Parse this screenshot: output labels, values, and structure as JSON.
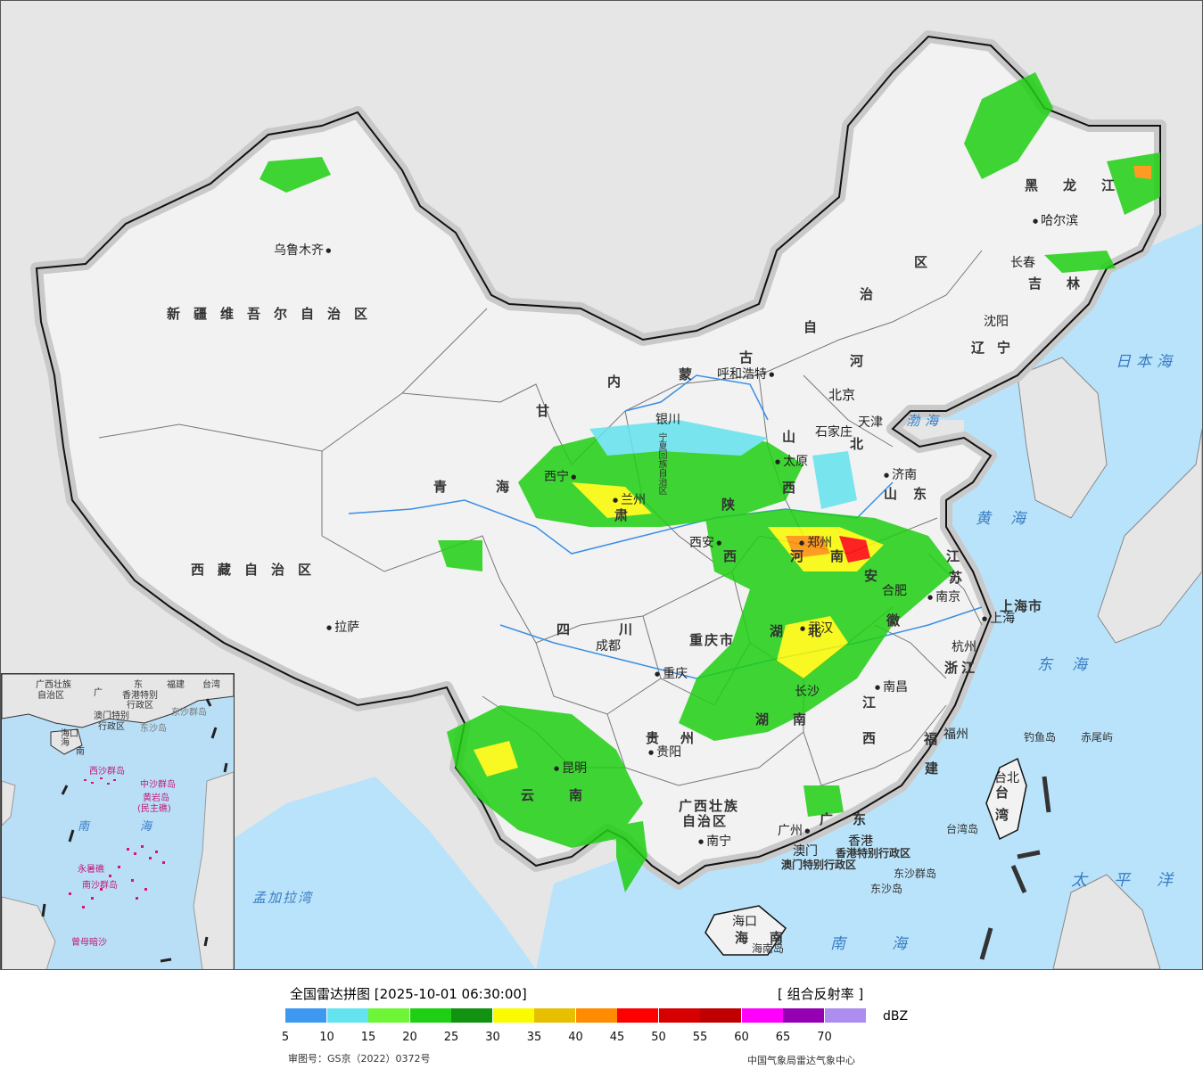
{
  "map": {
    "provinces": [
      "新疆维吾尔自治区",
      "西藏自治区",
      "青海",
      "甘肃",
      "内蒙古自治区",
      "黑龙江",
      "吉林",
      "辽宁",
      "河北",
      "山西",
      "陕西",
      "河南",
      "山东",
      "江苏",
      "安徽",
      "湖北",
      "四川",
      "重庆市",
      "贵州",
      "云南",
      "湖南",
      "江西",
      "浙江",
      "福建",
      "广东",
      "广西壮族自治区",
      "海南",
      "台湾"
    ],
    "province_labels": {
      "xinjiang": "新疆维吾尔自治区",
      "xizang": "西藏自治区",
      "qinghai": "青海",
      "gansu": "甘",
      "gansu2": "肃",
      "neimeng_nei": "内",
      "neimeng_meng": "蒙",
      "neimeng_gu": "古",
      "neimeng_zi": "自",
      "neimeng_zhi": "治",
      "neimeng_qu": "区",
      "heilongjiang": "黑龙江",
      "jilin": "吉林",
      "liaoning": "辽宁",
      "hebei1": "河",
      "hebei2": "北",
      "shanxi1": "山",
      "shanxi2": "西",
      "shaanxi1": "陕",
      "shaanxi2": "西",
      "henan": "河南",
      "shandong": "山东",
      "jiangsu1": "江",
      "jiangsu2": "苏",
      "anhui1": "安",
      "anhui2": "徽",
      "hubei1": "湖",
      "hubei2": "北",
      "sichuan": "四川",
      "chongqing": "重庆市",
      "guizhou1": "贵",
      "guizhou2": "州",
      "yunnan1": "云",
      "yunnan2": "南",
      "hunan1": "湖",
      "hunan2": "南",
      "jiangxi1": "江",
      "jiangxi2": "西",
      "zhejiang": "浙江",
      "fujian1": "福",
      "fujian2": "建",
      "guangdong": "广东",
      "guangxi1": "广西壮族",
      "guangxi2": "自治区",
      "hainan1": "海",
      "hainan2": "南",
      "taiwan1": "台",
      "taiwan2": "湾",
      "ningxia": "宁夏回族自治区",
      "shanghai": "上海市",
      "tianjin": "天津",
      "hk_sar": "香港特别行政区",
      "macao_sar": "澳门特别行政区"
    },
    "cities": {
      "urumqi": "乌鲁木齐",
      "lhasa": "拉萨",
      "xining": "西宁",
      "lanzhou": "兰州",
      "yinchuan": "银川",
      "hohhot": "呼和浩特",
      "beijing": "北京",
      "tianjin": "天津",
      "shijiazhuang": "石家庄",
      "taiyuan": "太原",
      "jinan": "济南",
      "xian": "西安",
      "zhengzhou": "郑州",
      "hefei": "合肥",
      "nanjing": "南京",
      "shanghai": "上海",
      "hangzhou": "杭州",
      "wuhan": "武汉",
      "chengdu": "成都",
      "chongqing": "重庆",
      "changsha": "长沙",
      "nanchang": "南昌",
      "fuzhou": "福州",
      "guiyang": "贵阳",
      "kunming": "昆明",
      "nanning": "南宁",
      "guangzhou": "广州",
      "hongkong": "香港",
      "macao": "澳门",
      "haikou": "海口",
      "taipei": "台北",
      "shenyang": "沈阳",
      "changchun": "长春",
      "harbin": "哈尔滨"
    },
    "islands": {
      "diaoyu": "钓鱼岛",
      "chiwei": "赤尾屿",
      "taiwan_island": "台湾岛",
      "dongsha_qundao": "东沙群岛",
      "dongsha_dao": "东沙岛",
      "hainan_dao": "海南岛"
    },
    "seas": {
      "japan_sea": "日本海",
      "bohai": "渤海",
      "yellow_sea": "黄海",
      "east_sea": "东海",
      "pacific": "太平洋",
      "south_sea": "南海",
      "bengal": "孟加拉湾"
    }
  },
  "inset": {
    "labels": {
      "guangxi": "广西壮族",
      "guangxi2": "自治区",
      "guangdong1": "广",
      "guangdong2": "东",
      "fujian": "福建",
      "taiwan": "台湾",
      "hk": "香港特别",
      "hk2": "行政区",
      "macao": "澳门特别",
      "macao2": "行政区",
      "dongsha": "东沙群岛",
      "dongsha2": "东沙岛",
      "haikou": "海口",
      "hainan": "海",
      "hainan2": "南",
      "xisha": "西沙群岛",
      "zhongsha": "中沙群岛",
      "huangyan": "黄岩岛",
      "huangyan2": "(民主礁)",
      "nansha": "南沙群岛",
      "south_sea": "南",
      "south_sea2": "海",
      "yongshu": "永暑礁",
      "zengmu": "曾母暗沙"
    }
  },
  "legend": {
    "title": "全国雷达拼图 [2025-10-01 06:30:00]",
    "product": "[ 组合反射率 ]",
    "unit": "dBZ",
    "ticks": [
      "5",
      "10",
      "15",
      "20",
      "25",
      "30",
      "35",
      "40",
      "45",
      "50",
      "55",
      "60",
      "65",
      "70"
    ],
    "colors": [
      "#3e98f0",
      "#63e3ee",
      "#6ef536",
      "#1fcf13",
      "#119311",
      "#fafa00",
      "#e6c000",
      "#ff8c00",
      "#ff0000",
      "#d60000",
      "#c00000",
      "#ff00ff",
      "#9600b4",
      "#ad8ef0"
    ],
    "review_number": "审图号：GS京（2022）0372号",
    "agency": "中国气象局雷达气象中心"
  }
}
